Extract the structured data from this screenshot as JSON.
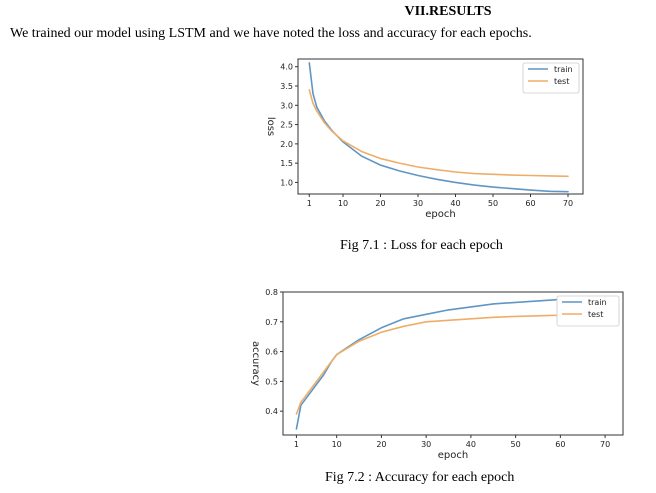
{
  "section": {
    "heading": "VII.RESULTS"
  },
  "intro": "We trained our model using LSTM and we have noted the loss and accuracy for each epochs.",
  "figures": [
    {
      "caption": "Fig 7.1 : Loss for each epoch"
    },
    {
      "caption": "Fig 7.2 : Accuracy for each epoch"
    }
  ],
  "colors": {
    "train": "#5f96c4",
    "test": "#efae67",
    "axis": "#333333"
  },
  "chart_data": [
    {
      "type": "line",
      "title": "",
      "xlabel": "epoch",
      "ylabel": "loss",
      "xlim": [
        -2,
        74
      ],
      "ylim": [
        0.7,
        4.2
      ],
      "xticks": [
        1,
        10,
        20,
        30,
        40,
        50,
        60,
        70
      ],
      "yticks": [
        1.0,
        1.5,
        2.0,
        2.5,
        3.0,
        3.5,
        4.0
      ],
      "ytick_decimals": 1,
      "grid": false,
      "legend": "top-right",
      "x": [
        1,
        2,
        3,
        5,
        7,
        10,
        15,
        20,
        25,
        30,
        35,
        40,
        45,
        50,
        55,
        60,
        65,
        70
      ],
      "series": [
        {
          "name": "train",
          "color": "#5f96c4",
          "values": [
            4.1,
            3.3,
            2.95,
            2.6,
            2.35,
            2.05,
            1.68,
            1.45,
            1.3,
            1.18,
            1.08,
            1.0,
            0.93,
            0.88,
            0.84,
            0.8,
            0.77,
            0.76
          ]
        },
        {
          "name": "test",
          "color": "#efae67",
          "values": [
            3.4,
            3.05,
            2.85,
            2.55,
            2.33,
            2.08,
            1.8,
            1.62,
            1.5,
            1.4,
            1.33,
            1.27,
            1.23,
            1.21,
            1.19,
            1.18,
            1.17,
            1.16
          ]
        }
      ]
    },
    {
      "type": "line",
      "title": "",
      "xlabel": "epoch",
      "ylabel": "accuracy",
      "xlim": [
        -2,
        74
      ],
      "ylim": [
        0.32,
        0.8
      ],
      "xticks": [
        1,
        10,
        20,
        30,
        40,
        50,
        60,
        70
      ],
      "yticks": [
        0.4,
        0.5,
        0.6,
        0.7,
        0.8
      ],
      "ytick_decimals": 1,
      "grid": false,
      "legend": "top-right",
      "x": [
        1,
        2,
        3,
        5,
        7,
        9,
        10,
        15,
        20,
        25,
        30,
        35,
        40,
        45,
        50,
        55,
        60,
        63
      ],
      "series": [
        {
          "name": "train",
          "color": "#5f96c4",
          "values": [
            0.34,
            0.42,
            0.44,
            0.48,
            0.52,
            0.57,
            0.59,
            0.64,
            0.68,
            0.71,
            0.725,
            0.74,
            0.75,
            0.76,
            0.765,
            0.77,
            0.775,
            0.778
          ]
        },
        {
          "name": "test",
          "color": "#efae67",
          "values": [
            0.39,
            0.43,
            0.45,
            0.49,
            0.53,
            0.57,
            0.59,
            0.635,
            0.665,
            0.685,
            0.7,
            0.705,
            0.71,
            0.715,
            0.718,
            0.72,
            0.722,
            0.725
          ]
        }
      ]
    }
  ]
}
